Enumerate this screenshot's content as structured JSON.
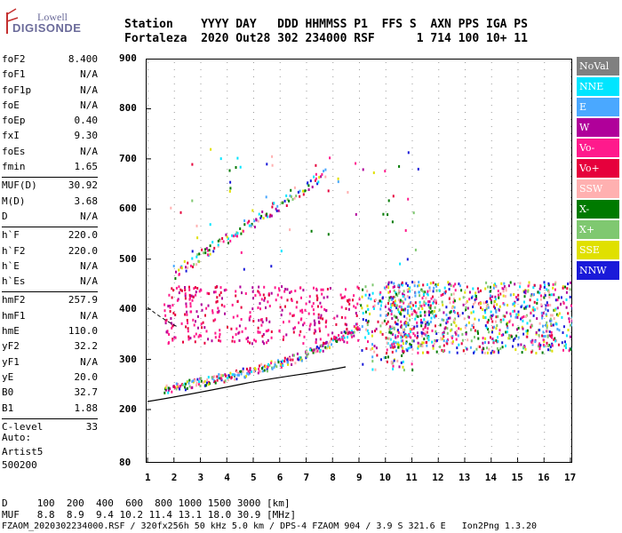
{
  "logo": {
    "line1": "Lowell",
    "line2": "DIGISONDE"
  },
  "header": {
    "row1": "Station    YYYY DAY   DDD HHMMSS P1  FFS S  AXN PPS IGA PS",
    "row2": "Fortaleza  2020 Out28 302 234000 RSF      1 714 100 10+ 11"
  },
  "params": {
    "group1": [
      {
        "k": "foF2",
        "v": "8.400"
      },
      {
        "k": "foF1",
        "v": "N/A"
      },
      {
        "k": "foF1p",
        "v": "N/A"
      },
      {
        "k": "foE",
        "v": "N/A"
      },
      {
        "k": "foEp",
        "v": "0.40"
      },
      {
        "k": "fxI",
        "v": "9.30"
      },
      {
        "k": "foEs",
        "v": "N/A"
      },
      {
        "k": "fmin",
        "v": "1.65"
      }
    ],
    "group2": [
      {
        "k": "MUF(D)",
        "v": "30.92"
      },
      {
        "k": "M(D)",
        "v": "3.68"
      },
      {
        "k": "D",
        "v": "N/A"
      }
    ],
    "group3": [
      {
        "k": "h`F",
        "v": "220.0"
      },
      {
        "k": "h`F2",
        "v": "220.0"
      },
      {
        "k": "h`E",
        "v": "N/A"
      },
      {
        "k": "h`Es",
        "v": "N/A"
      }
    ],
    "group4": [
      {
        "k": "hmF2",
        "v": "257.9"
      },
      {
        "k": "hmF1",
        "v": "N/A"
      },
      {
        "k": "hmE",
        "v": "110.0"
      },
      {
        "k": "yF2",
        "v": "32.2"
      },
      {
        "k": "yF1",
        "v": "N/A"
      },
      {
        "k": "yE",
        "v": "20.0"
      },
      {
        "k": "B0",
        "v": "32.7"
      },
      {
        "k": "B1",
        "v": "1.88"
      }
    ],
    "group5": [
      {
        "k": "C-level",
        "v": "33"
      }
    ]
  },
  "auto": {
    "line1": "Auto:",
    "line2": "Artist5",
    "line3": "500200"
  },
  "dmuf": {
    "d_row": "D     100  200  400  600  800 1000 1500 3000 [km]",
    "muf_row": "MUF   8.8  8.9  9.4 10.2 11.4 13.1 18.0 30.9 [MHz]"
  },
  "footer": "FZAOM_2020302234000.RSF / 320fx256h 50 kHz 5.0 km / DPS-4 FZAOM 904 / 3.9 S 321.6 E   Ion2Png 1.3.20",
  "legend": [
    {
      "label": "NoVal",
      "color": "#808080"
    },
    {
      "label": "NNE",
      "color": "#00e5ff"
    },
    {
      "label": "E",
      "color": "#4aa8ff"
    },
    {
      "label": "W",
      "color": "#b0009a"
    },
    {
      "label": "Vo-",
      "color": "#ff1a8c"
    },
    {
      "label": "Vo+",
      "color": "#e6003c"
    },
    {
      "label": "SSW",
      "color": "#ffb0b0"
    },
    {
      "label": "X-",
      "color": "#007a00"
    },
    {
      "label": "X+",
      "color": "#7fc870"
    },
    {
      "label": "SSE",
      "color": "#e0e000"
    },
    {
      "label": "NNW",
      "color": "#1a1ad9"
    }
  ],
  "axes": {
    "y_ticks": [
      "900",
      "800",
      "700",
      "600",
      "500",
      "400",
      "300",
      "200",
      "80"
    ],
    "x_ticks": [
      "1",
      "2",
      "3",
      "4",
      "5",
      "6",
      "7",
      "8",
      "9",
      "10",
      "11",
      "12",
      "13",
      "14",
      "15",
      "16",
      "17"
    ]
  }
}
